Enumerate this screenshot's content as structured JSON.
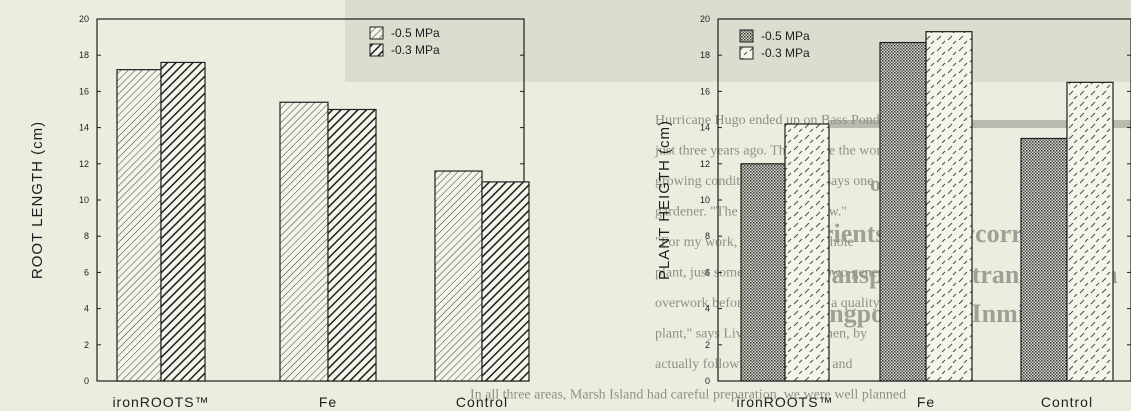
{
  "background_text": {
    "headings": [
      "oject'1s",
      "rients and mycorrhizal",
      "ransport and translocation",
      "ingpost afoll, Inmicu",
      "wers"
    ],
    "paragraph": [
      "Hurricane Hugo ended up on Bass Pond",
      "just three years ago. Those were the worst",
      "growing conditions possible,\" says one",
      "gardener. \"The pH level was low.\"",
      "\"For my work, I don't need a whole",
      "plant, just something to invest two generations of",
      "overwork before we ever grow a quality",
      "plant,\" says Livingston. \"Just then, by",
      "actually following the program and",
      "In all three areas, Marsh Island had careful preparation, we were well planned"
    ]
  },
  "chart_data": [
    {
      "type": "bar",
      "title": "",
      "xlabel": "",
      "ylabel": "ROOT LENGTH (cm)",
      "ylim": [
        0,
        20
      ],
      "yticks": [
        "0",
        "2",
        "4",
        "6",
        "8",
        "10",
        "12",
        "14",
        "16",
        "18",
        "20"
      ],
      "categories": [
        "ironROOTS™",
        "Fe",
        "Control"
      ],
      "legend_position": "top-right",
      "series": [
        {
          "name": "-0.5 MPa",
          "values": [
            17.2,
            15.4,
            11.6
          ],
          "pattern": "thin-diagonal"
        },
        {
          "name": "-0.3 MPa",
          "values": [
            17.6,
            15.0,
            11.0
          ],
          "pattern": "thick-diagonal"
        }
      ]
    },
    {
      "type": "bar",
      "title": "",
      "xlabel": "",
      "ylabel": "PLANT HEIGTH (cm)",
      "ylim": [
        0,
        20
      ],
      "yticks": [
        "0",
        "2",
        "4",
        "6",
        "8",
        "10",
        "12",
        "14",
        "16",
        "18",
        "20"
      ],
      "categories": [
        "ironROOTS™",
        "Fe",
        "Control"
      ],
      "legend_position": "top-left",
      "series": [
        {
          "name": "-0.5 MPa",
          "values": [
            12.0,
            18.7,
            13.4
          ],
          "pattern": "dense-crosshatch"
        },
        {
          "name": "-0.3 MPa",
          "values": [
            14.2,
            19.3,
            16.5
          ],
          "pattern": "sparse-dashes"
        }
      ]
    }
  ],
  "colors": {
    "background": "#ededdf",
    "ink": "#1e1e1e",
    "bar_fill": "#f4f4ea"
  }
}
